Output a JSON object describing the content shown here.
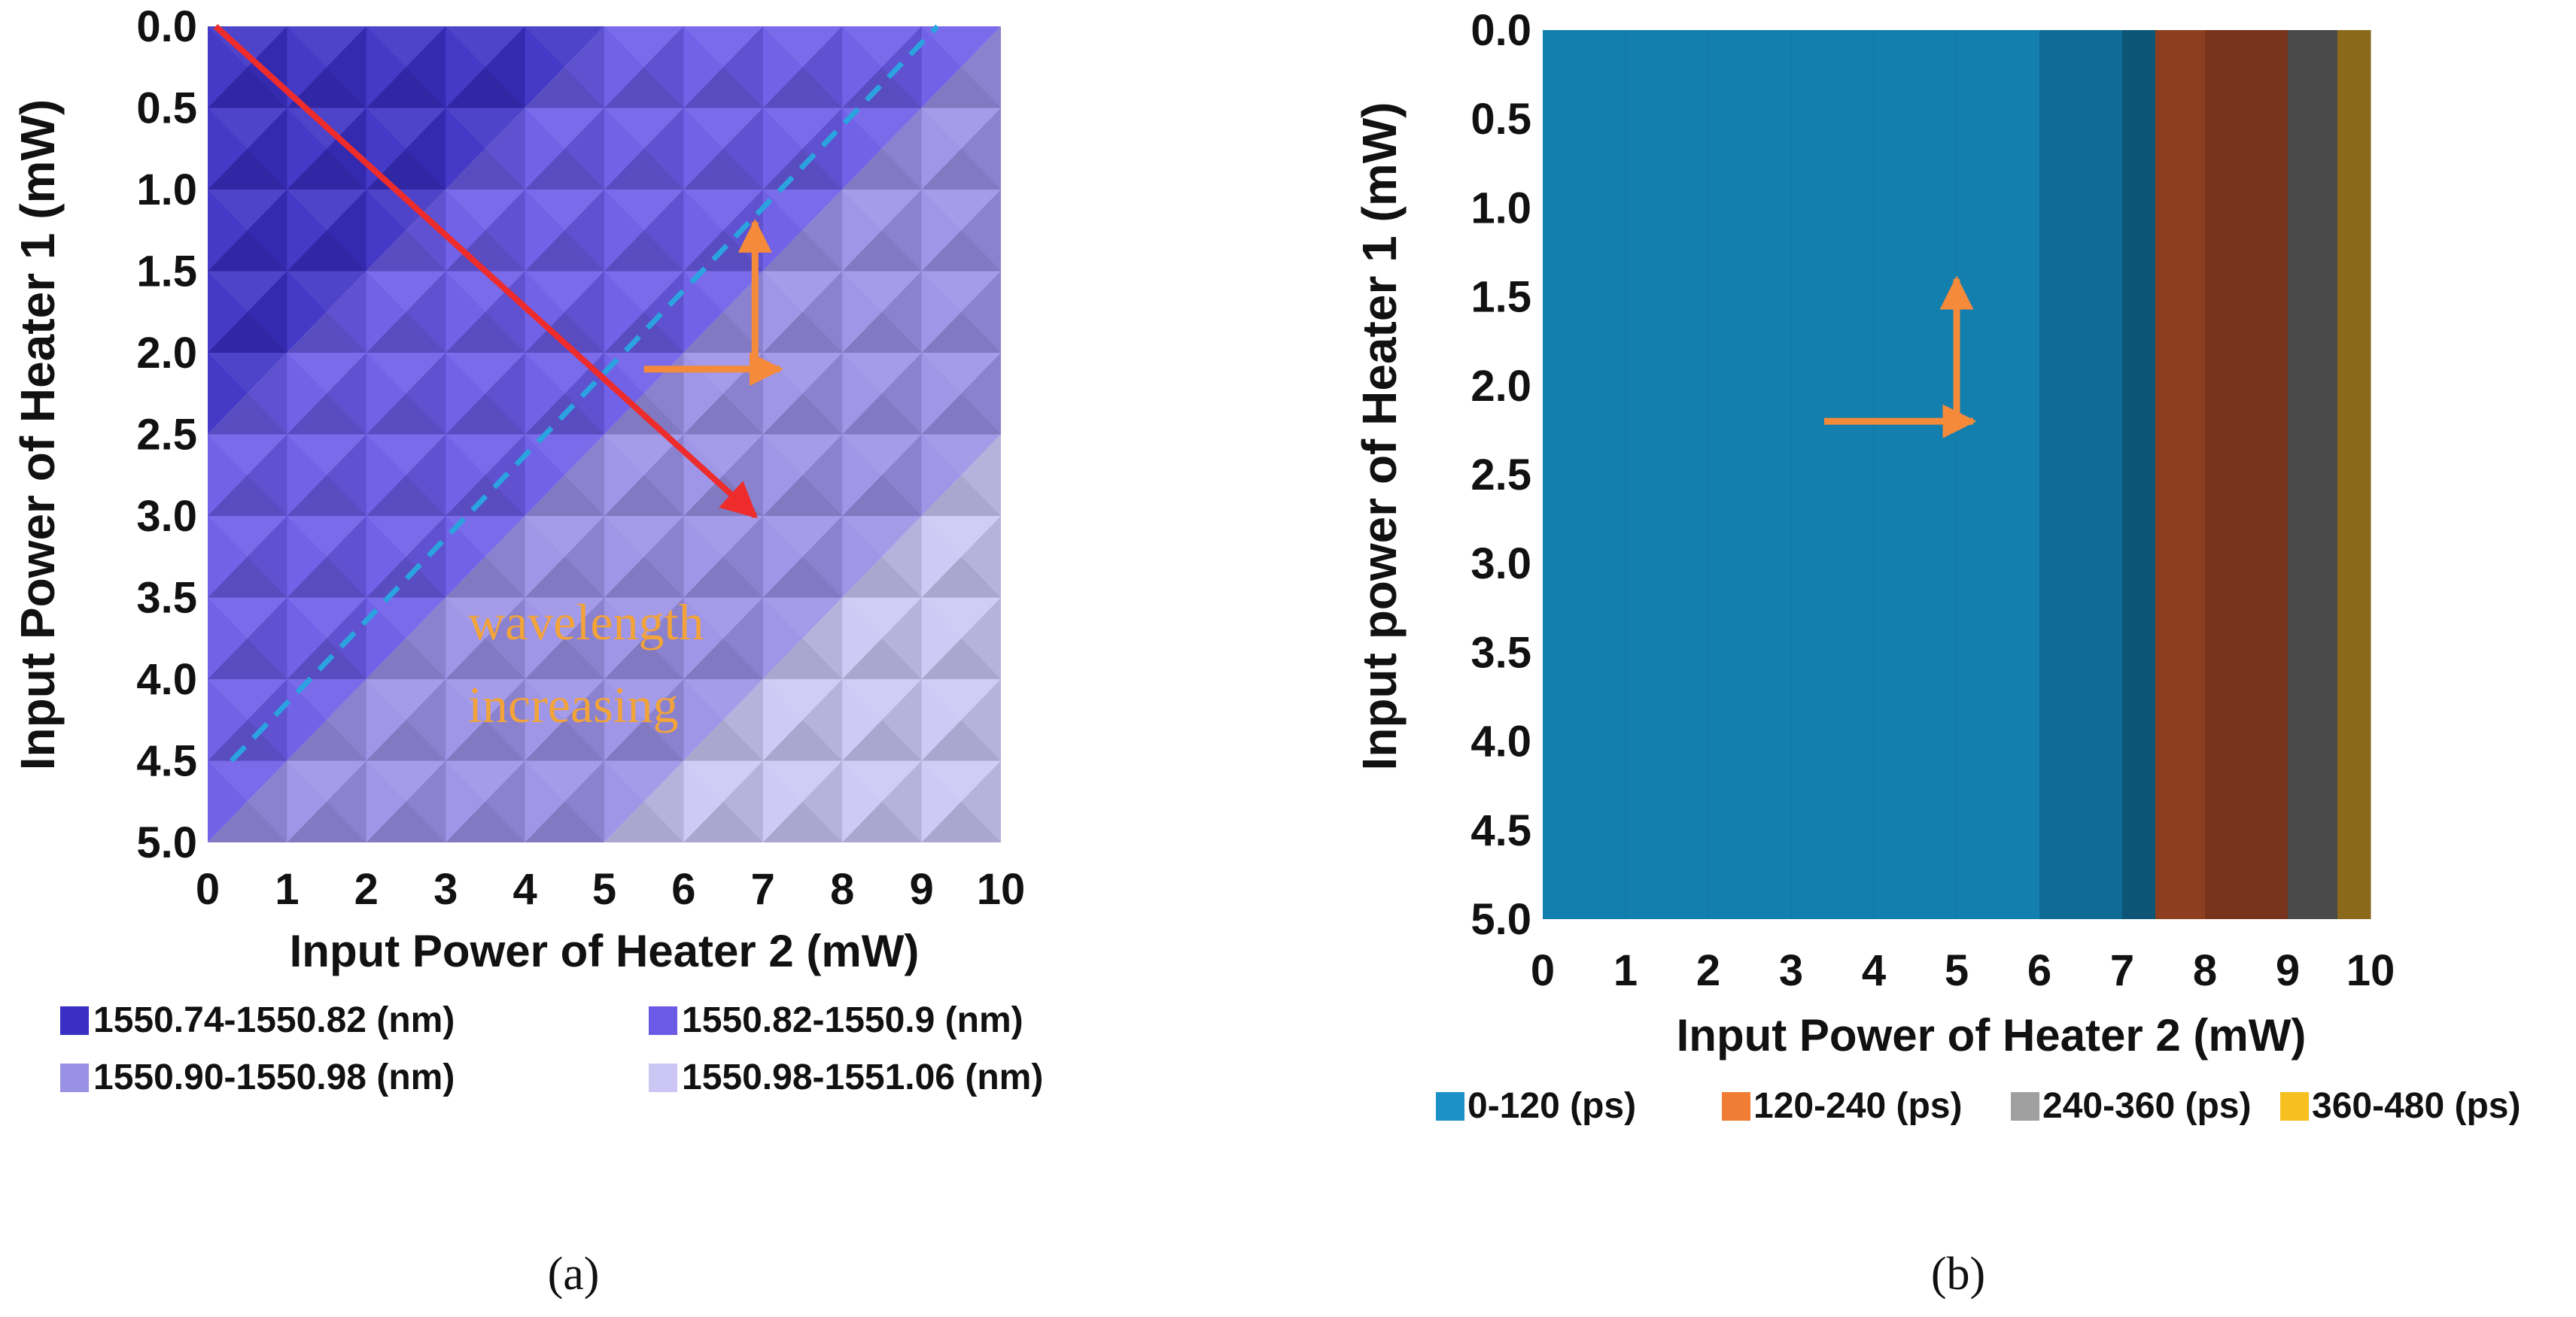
{
  "chart_data": [
    {
      "type": "heatmap",
      "panel_label": "(a)",
      "xlabel": "Input Power of Heater 2 (mW)",
      "ylabel": "Input Power of Heater 1 (mW)",
      "x_ticks": [
        "0",
        "1",
        "2",
        "3",
        "4",
        "5",
        "6",
        "7",
        "8",
        "9",
        "10"
      ],
      "y_ticks": [
        "0.0",
        "0.5",
        "1.0",
        "1.5",
        "2.0",
        "2.5",
        "3.0",
        "3.5",
        "4.0",
        "4.5",
        "5.0"
      ],
      "xlim": [
        0,
        10
      ],
      "ylim": [
        0,
        5
      ],
      "y_inverted": true,
      "legend_placement": "bottom",
      "legend": [
        {
          "label": "1550.74-1550.82 (nm)",
          "color": "#3a2fc4"
        },
        {
          "label": "1550.82-1550.9 (nm)",
          "color": "#6a5ae6"
        },
        {
          "label": "1550.90-1550.98 (nm)",
          "color": "#9a90e6"
        },
        {
          "label": "1550.98-1551.06 (nm)",
          "color": "#cbc6f4"
        }
      ],
      "regions": [
        {
          "band": 0,
          "color": "#3a2fc4",
          "note": "top-left region: x + 2y < 5"
        },
        {
          "band": 1,
          "color": "#6a5ae6",
          "note": "5 <= x + 2y < 10"
        },
        {
          "band": 2,
          "color": "#9a90e6",
          "note": "10 <= x + 2y < 15"
        },
        {
          "band": 3,
          "color": "#cbc6f4",
          "note": "x + 2y >= 15"
        }
      ],
      "annotation": {
        "line1": "wavelength",
        "line2": "increasing",
        "color": "#f2a33a"
      },
      "annotation_arrows": {
        "red_diagonal": {
          "from": [
            0.1,
            0.0
          ],
          "to": [
            6.9,
            3.0
          ],
          "color": "#ee2c2c"
        },
        "dashed_contour": {
          "from": [
            0.3,
            4.5
          ],
          "to": [
            9.2,
            0.0
          ],
          "color": "#2aa3e0"
        },
        "orange_axes": {
          "origin": [
            6.9,
            2.1
          ],
          "x_to": [
            7.1,
            2.1
          ],
          "y_to": [
            6.9,
            1.2
          ],
          "x_from": [
            5.5,
            2.1
          ],
          "color": "#f58a3a"
        }
      }
    },
    {
      "type": "heatmap",
      "panel_label": "(b)",
      "xlabel": "Input Power of Heater 2 (mW)",
      "ylabel": "Input power of Heater 1 (mW)",
      "x_ticks": [
        "0",
        "1",
        "2",
        "3",
        "4",
        "5",
        "6",
        "7",
        "8",
        "9",
        "10"
      ],
      "y_ticks": [
        "0.0",
        "0.5",
        "1.0",
        "1.5",
        "2.0",
        "2.5",
        "3.0",
        "3.5",
        "4.0",
        "4.5",
        "5.0"
      ],
      "xlim": [
        0,
        10
      ],
      "ylim": [
        0,
        5
      ],
      "y_inverted": true,
      "legend_placement": "bottom",
      "legend": [
        {
          "label": "0-120 (ps)",
          "color": "#1a92c8"
        },
        {
          "label": "120-240 (ps)",
          "color": "#f07d33"
        },
        {
          "label": "240-360 (ps)",
          "color": "#a0a0a0"
        },
        {
          "label": "360-480 (ps)",
          "color": "#f6c021"
        }
      ],
      "bands_by_heater2": [
        {
          "x0": 0.0,
          "x1": 6.0,
          "value": "0-120 (ps)",
          "color": "#137fae"
        },
        {
          "x0": 6.0,
          "x1": 7.0,
          "value": "0-120 (ps)",
          "color": "#0f6b95"
        },
        {
          "x0": 7.0,
          "x1": 7.4,
          "value": "0-120 (ps)",
          "color": "#0c5577"
        },
        {
          "x0": 7.4,
          "x1": 8.0,
          "value": "120-240 (ps)",
          "color": "#8c3e1f"
        },
        {
          "x0": 8.0,
          "x1": 9.0,
          "value": "120-240 (ps)",
          "color": "#77331b"
        },
        {
          "x0": 9.0,
          "x1": 9.6,
          "value": "240-360 (ps)",
          "color": "#4a4a4a"
        },
        {
          "x0": 9.6,
          "x1": 10.0,
          "value": "360-480 (ps)",
          "color": "#8a6a1a"
        }
      ],
      "annotation_arrows": {
        "orange_axes": {
          "origin": [
            5.0,
            2.2
          ],
          "x_from": [
            3.4,
            2.2
          ],
          "x_to": [
            5.2,
            2.2
          ],
          "y_to": [
            5.0,
            1.4
          ],
          "color": "#f58a3a"
        }
      }
    }
  ]
}
